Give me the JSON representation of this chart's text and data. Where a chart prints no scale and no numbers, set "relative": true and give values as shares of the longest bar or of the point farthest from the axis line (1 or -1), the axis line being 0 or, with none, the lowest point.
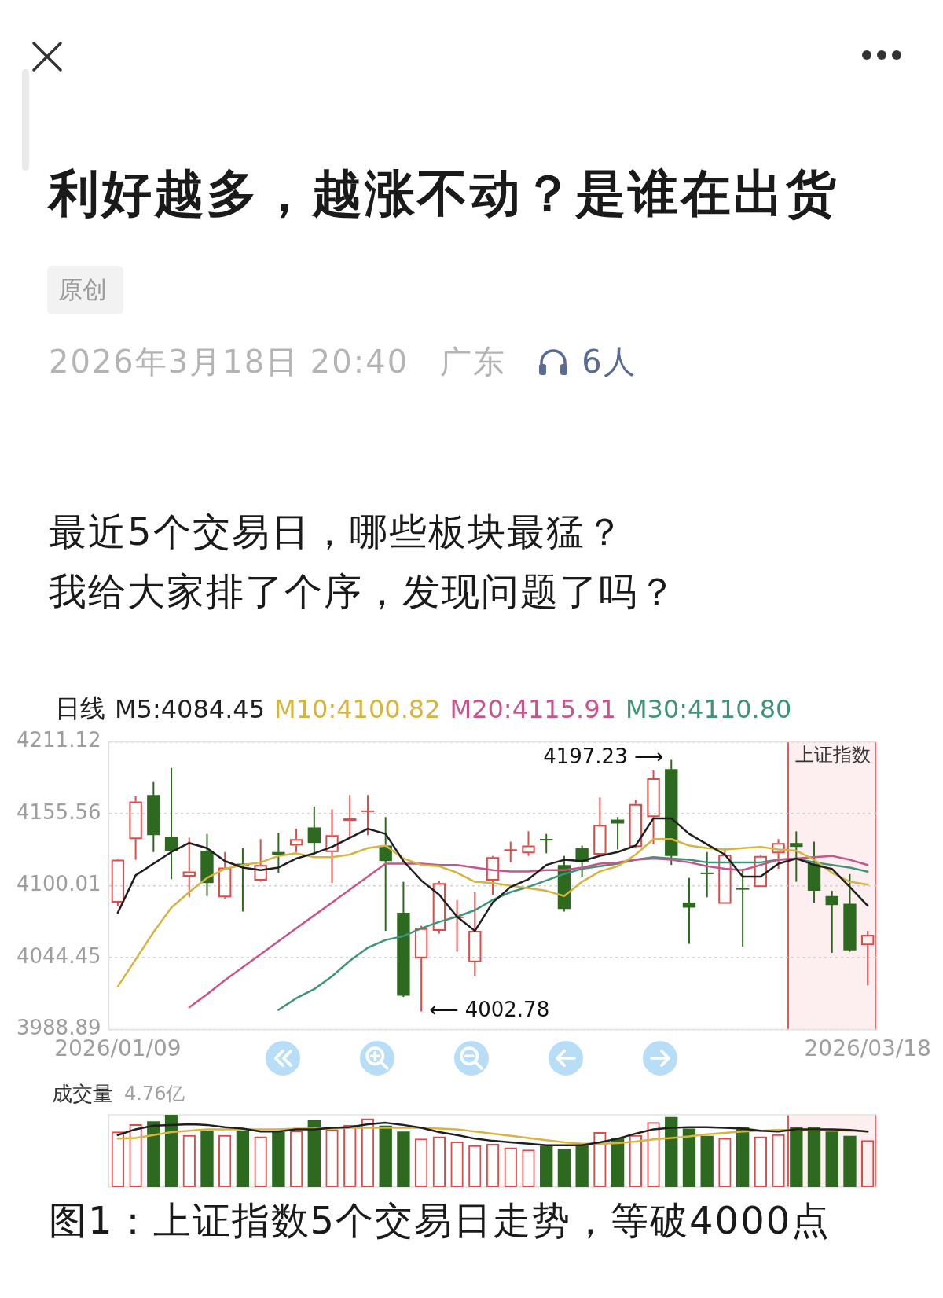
{
  "chart_data": [
    {
      "type": "candlestick",
      "title": "利好越多，越涨不动？是谁在出货",
      "legend_title": "日线",
      "categories": [
        "2026/01/09",
        null,
        null,
        null,
        null,
        null,
        null,
        null,
        null,
        null,
        null,
        null,
        null,
        null,
        null,
        null,
        null,
        null,
        null,
        null,
        null,
        null,
        null,
        null,
        null,
        null,
        null,
        null,
        null,
        null,
        null,
        null,
        null,
        null,
        null,
        null,
        null,
        null,
        null,
        null,
        null,
        null,
        "2026/03/18"
      ],
      "ohlc": [
        [
          4087,
          4121,
          4084,
          4120
        ],
        [
          4136,
          4169,
          4120,
          4165
        ],
        [
          4170,
          4180,
          4126,
          4139
        ],
        [
          4138,
          4191,
          4105,
          4127
        ],
        [
          4107,
          4137,
          4091,
          4111
        ],
        [
          4127,
          4140,
          4092,
          4102
        ],
        [
          4091,
          4126,
          4090,
          4114
        ],
        [
          4117,
          4129,
          4080,
          4115
        ],
        [
          4104,
          4136,
          4103,
          4116
        ],
        [
          4126,
          4141,
          4110,
          4124
        ],
        [
          4131,
          4144,
          4126,
          4136
        ],
        [
          4145,
          4161,
          4124,
          4133
        ],
        [
          4126,
          4159,
          4102,
          4139
        ],
        [
          4150,
          4170,
          4138,
          4152
        ],
        [
          4157,
          4170,
          4139,
          4158
        ],
        [
          4131,
          4153,
          4065,
          4119
        ],
        [
          4079,
          4103,
          4014,
          4015
        ],
        [
          4044,
          4069,
          4002.78,
          4067
        ],
        [
          4065,
          4104,
          4063,
          4102
        ],
        [
          4075,
          4089,
          4049,
          4076
        ],
        [
          4041,
          4095,
          4030,
          4065
        ],
        [
          4104,
          4123,
          4093,
          4122
        ],
        [
          4127,
          4134,
          4118,
          4128
        ],
        [
          4125,
          4142,
          4123,
          4131
        ],
        [
          4136,
          4140,
          4125,
          4135
        ],
        [
          4116,
          4123,
          4080,
          4082
        ],
        [
          4129,
          4131,
          4107,
          4118
        ],
        [
          4124,
          4168,
          4123,
          4147
        ],
        [
          4151,
          4153,
          4128,
          4148
        ],
        [
          4130,
          4166,
          4129,
          4163
        ],
        [
          4153,
          4189,
          4132,
          4183
        ],
        [
          4190,
          4197.23,
          4116,
          4123
        ],
        [
          4087,
          4106,
          4055,
          4083
        ],
        [
          4110,
          4126,
          4091,
          4109
        ],
        [
          4086,
          4129,
          4086,
          4124
        ],
        [
          4098,
          4113,
          4053,
          4097
        ],
        [
          4099,
          4124,
          4099,
          4123
        ],
        [
          4125,
          4136,
          4113,
          4133
        ],
        [
          4133,
          4142,
          4103,
          4130
        ],
        [
          4117,
          4134,
          4087,
          4096
        ],
        [
          4092,
          4096,
          4048,
          4085
        ],
        [
          4086,
          4109,
          4049,
          4050
        ],
        [
          4054,
          4065,
          4023,
          4062
        ]
      ],
      "colors": [
        "#e24a4a",
        "#e24a4a",
        "#2d6a1f",
        "#2d6a1f",
        "#e24a4a",
        "#2d6a1f",
        "#e24a4a",
        "#2d6a1f",
        "#e24a4a",
        "#2d6a1f",
        "#e24a4a",
        "#2d6a1f",
        "#e24a4a",
        "#e24a4a",
        "#e24a4a",
        "#2d6a1f",
        "#2d6a1f",
        "#e24a4a",
        "#e24a4a",
        "#e24a4a",
        "#e24a4a",
        "#e24a4a",
        "#e24a4a",
        "#e24a4a",
        "#2d6a1f",
        "#2d6a1f",
        "#2d6a1f",
        "#e24a4a",
        "#2d6a1f",
        "#e24a4a",
        "#e24a4a",
        "#2d6a1f",
        "#2d6a1f",
        "#2d6a1f",
        "#e24a4a",
        "#2d6a1f",
        "#e24a4a",
        "#e24a4a",
        "#2d6a1f",
        "#2d6a1f",
        "#2d6a1f",
        "#2d6a1f",
        "#e24a4a"
      ],
      "series": [
        {
          "name": "M5:4084.45",
          "type": "line",
          "color": "#1f1f1f",
          "values": [
            4079,
            4108,
            4117,
            4126,
            4133,
            4129,
            4119,
            4114,
            4112,
            4114,
            4121,
            4125,
            4130,
            4137,
            4144,
            4140,
            4119,
            4104,
            4093,
            4076,
            4065,
            4087,
            4099,
            4105,
            4116,
            4120,
            4119,
            4123,
            4126,
            4131,
            4152,
            4152,
            4140,
            4132,
            4124,
            4107,
            4107,
            4117,
            4121,
            4116,
            4113,
            4099,
            4084.45
          ]
        },
        {
          "name": "M10:4100.82",
          "type": "line",
          "color": "#d6b43f",
          "values": [
            4022,
            4043,
            4064,
            4083,
            4095,
            4106,
            4113,
            4116,
            4118,
            4123,
            4125,
            4122,
            4122,
            4124,
            4129,
            4131,
            4121,
            4116,
            4115,
            4110,
            4103,
            4102,
            4100,
            4098,
            4096,
            4092,
            4103,
            4111,
            4115,
            4124,
            4136,
            4136,
            4131,
            4129,
            4128,
            4129,
            4130,
            4128,
            4127,
            4120,
            4110,
            4103,
            4100.82
          ]
        },
        {
          "name": "M20:4115.91",
          "type": "line",
          "color": "#c8548b",
          "values": [
            null,
            null,
            null,
            null,
            4006,
            4016,
            4027,
            4037,
            4047,
            4057,
            4067,
            4077,
            4087,
            4097,
            4107,
            4117,
            4117,
            4117,
            4116,
            4116,
            4114,
            4112,
            4111,
            4111,
            4112,
            4112,
            4114,
            4117,
            4118,
            4120,
            4121,
            4120,
            4118,
            4115,
            4113,
            4112,
            4116,
            4120,
            4121,
            4122,
            4123,
            4120,
            4115.91
          ]
        },
        {
          "name": "M30:4110.80",
          "type": "line",
          "color": "#3d9479",
          "values": [
            null,
            null,
            null,
            null,
            null,
            null,
            null,
            null,
            null,
            4004,
            4013,
            4020,
            4030,
            4042,
            4052,
            4058,
            4061,
            4067,
            4072,
            4076,
            4081,
            4089,
            4095,
            4099,
            4104,
            4109,
            4113,
            4115,
            4117,
            4120,
            4122,
            4121,
            4120,
            4118,
            4118,
            4118,
            4118,
            4120,
            4121,
            4118,
            4116,
            4114,
            4110.8
          ]
        }
      ],
      "ylim": [
        3988.89,
        4211.12
      ],
      "yticks": [
        3988.89,
        4044.45,
        4100.01,
        4155.56,
        4211.12
      ],
      "grid": "y",
      "legend": "top left",
      "marker": "none",
      "annotations": [
        "原创",
        "2026年3月18日 20:40",
        "广东",
        "6人",
        "最近5个交易日，哪些板块最猛？",
        "我给大家排了个序，发现问题了吗？",
        "上证指数",
        "4197.23 ⟶",
        "⟵ 4002.78"
      ]
    },
    {
      "type": "bar",
      "title": "成交量",
      "relative": true,
      "tick_labels": false,
      "marker": "none",
      "categories": [
        "2026/01/09",
        null,
        null,
        null,
        null,
        null,
        null,
        null,
        null,
        null,
        null,
        null,
        null,
        null,
        null,
        null,
        null,
        null,
        null,
        null,
        null,
        null,
        null,
        null,
        null,
        null,
        null,
        null,
        null,
        null,
        null,
        null,
        null,
        null,
        null,
        null,
        null,
        null,
        null,
        null,
        null,
        null,
        "2026/03/18"
      ],
      "series": [
        {
          "type": "bar",
          "colors": [
            "#e24a4a",
            "#e24a4a",
            "#2d6a1f",
            "#2d6a1f",
            "#e24a4a",
            "#2d6a1f",
            "#e24a4a",
            "#2d6a1f",
            "#e24a4a",
            "#2d6a1f",
            "#e24a4a",
            "#2d6a1f",
            "#e24a4a",
            "#e24a4a",
            "#e24a4a",
            "#2d6a1f",
            "#2d6a1f",
            "#e24a4a",
            "#e24a4a",
            "#e24a4a",
            "#e24a4a",
            "#e24a4a",
            "#e24a4a",
            "#e24a4a",
            "#2d6a1f",
            "#2d6a1f",
            "#2d6a1f",
            "#e24a4a",
            "#2d6a1f",
            "#e24a4a",
            "#e24a4a",
            "#2d6a1f",
            "#2d6a1f",
            "#2d6a1f",
            "#e24a4a",
            "#2d6a1f",
            "#e24a4a",
            "#e24a4a",
            "#2d6a1f",
            "#2d6a1f",
            "#2d6a1f",
            "#2d6a1f",
            "#e24a4a"
          ],
          "values": [
            0.77,
            0.87,
            0.91,
            1,
            0.72,
            0.78,
            0.72,
            0.78,
            0.7,
            0.76,
            0.78,
            0.93,
            0.8,
            0.86,
            0.95,
            0.85,
            0.77,
            0.67,
            0.7,
            0.63,
            0.58,
            0.6,
            0.55,
            0.52,
            0.57,
            0.53,
            0.58,
            0.76,
            0.68,
            0.72,
            0.9,
            0.97,
            0.81,
            0.71,
            0.68,
            0.83,
            0.7,
            0.73,
            0.83,
            0.83,
            0.77,
            0.71,
            0.65
          ]
        },
        {
          "type": "line",
          "color": "#1f1f1f",
          "values": [
            0.72,
            0.8,
            0.85,
            0.86,
            0.87,
            0.86,
            0.83,
            0.81,
            0.77,
            0.77,
            0.8,
            0.8,
            0.82,
            0.83,
            0.87,
            0.89,
            0.86,
            0.82,
            0.76,
            0.72,
            0.67,
            0.64,
            0.62,
            0.6,
            0.58,
            0.58,
            0.58,
            0.62,
            0.67,
            0.74,
            0.8,
            0.82,
            0.83,
            0.83,
            0.82,
            0.81,
            0.78,
            0.77,
            0.8,
            0.8,
            0.8,
            0.79,
            0.77
          ]
        },
        {
          "type": "line",
          "color": "#d6b43f",
          "values": [
            0.67,
            0.68,
            0.72,
            0.76,
            0.78,
            0.8,
            0.8,
            0.8,
            0.8,
            0.8,
            0.81,
            0.81,
            0.81,
            0.82,
            0.82,
            0.82,
            0.82,
            0.82,
            0.81,
            0.8,
            0.77,
            0.74,
            0.71,
            0.68,
            0.65,
            0.62,
            0.6,
            0.6,
            0.61,
            0.63,
            0.66,
            0.68,
            0.7,
            0.73,
            0.75,
            0.77,
            0.78,
            0.79,
            0.79,
            0.79,
            0.79,
            0.78,
            0.77
          ]
        }
      ],
      "annotations": [
        "4.76亿",
        "图1：上证指数5个交易日走势，等破4000点"
      ]
    }
  ]
}
